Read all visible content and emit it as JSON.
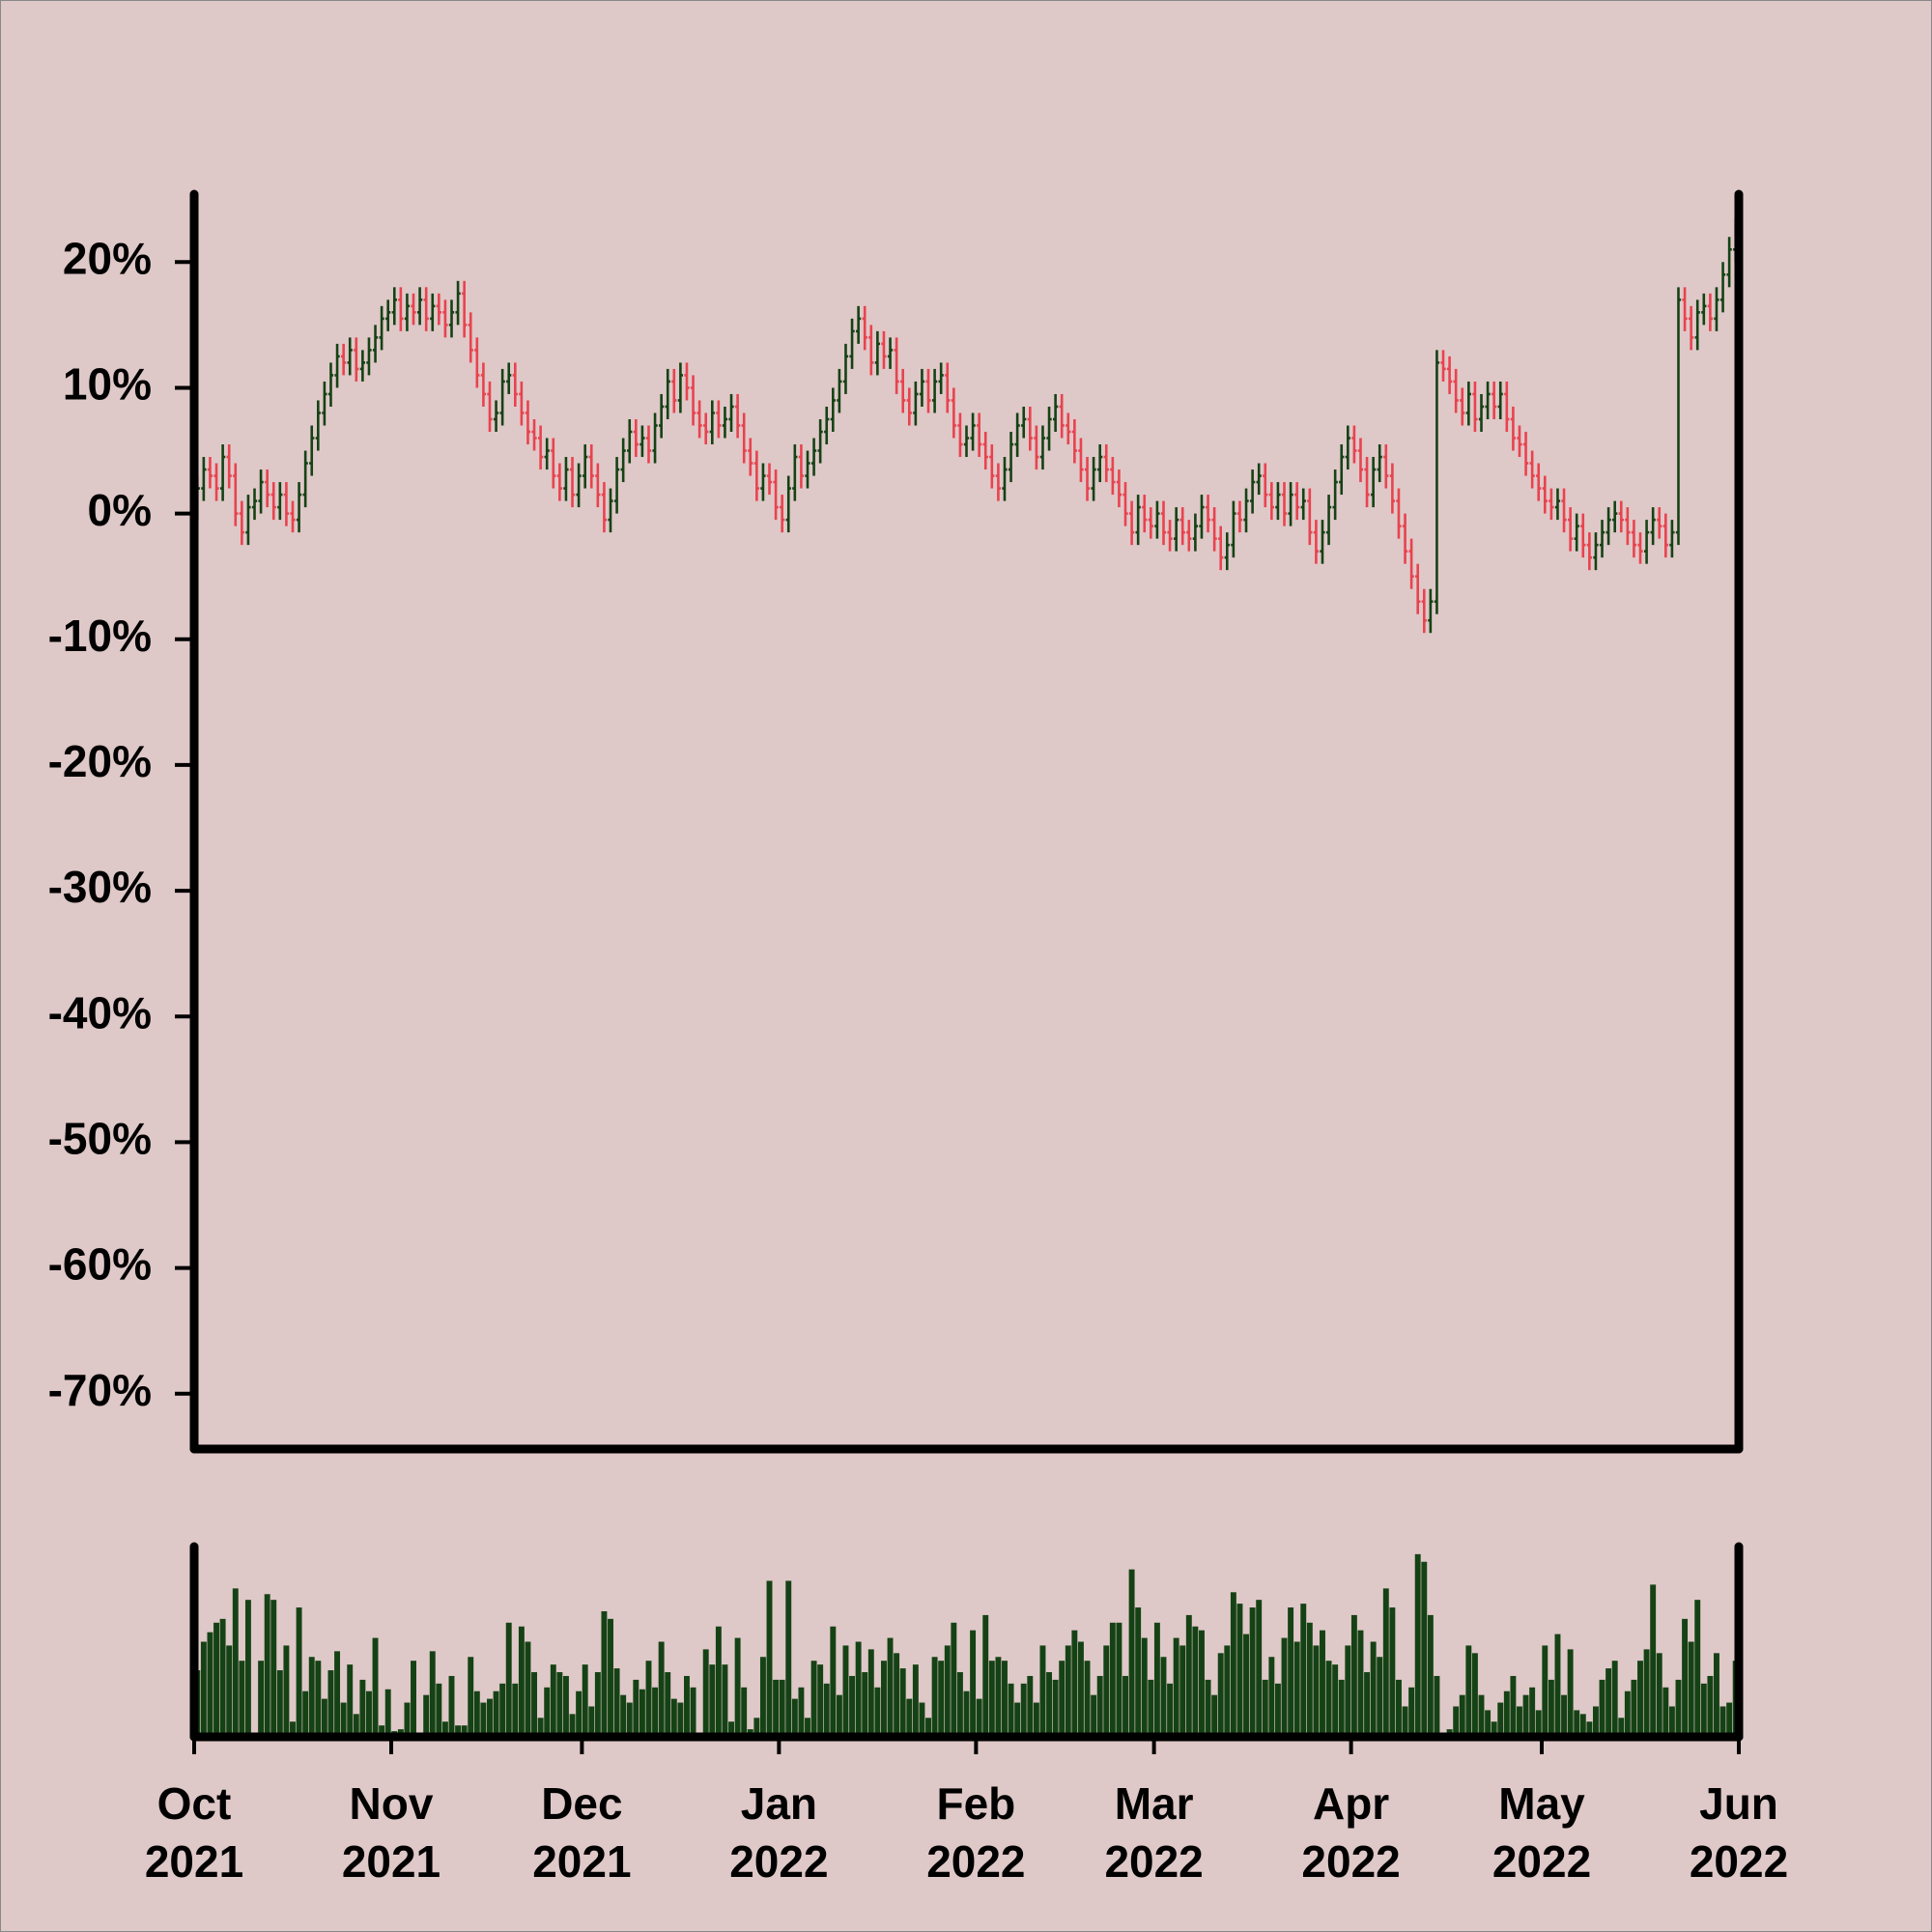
{
  "chart_data": {
    "type": "ohlc",
    "xlim": [
      0,
      243
    ],
    "xticks": [
      {
        "value": 0,
        "label": "Oct\n2021"
      },
      {
        "value": 31,
        "label": "Nov\n2021"
      },
      {
        "value": 61,
        "label": "Dec\n2021"
      },
      {
        "value": 92,
        "label": "Jan\n2022"
      },
      {
        "value": 123,
        "label": "Feb\n2022"
      },
      {
        "value": 151,
        "label": "Mar\n2022"
      },
      {
        "value": 182,
        "label": "Apr\n2022"
      },
      {
        "value": 212,
        "label": "May\n2022"
      },
      {
        "value": 243,
        "label": "Jun\n2022"
      }
    ],
    "ylim": [
      -74.4,
      25.4
    ],
    "yticks": [
      {
        "value": -70,
        "label": "-70%"
      },
      {
        "value": -60,
        "label": "-60%"
      },
      {
        "value": -50,
        "label": "-50%"
      },
      {
        "value": -40,
        "label": "-40%"
      },
      {
        "value": -30,
        "label": "-30%"
      },
      {
        "value": -20,
        "label": "-20%"
      },
      {
        "value": -10,
        "label": "-10%"
      },
      {
        "value": 0,
        "label": "0%"
      },
      {
        "value": 10,
        "label": "10%"
      },
      {
        "value": 20,
        "label": "20%"
      }
    ],
    "up_color": "#154215",
    "down_color": "#e8434f",
    "volume_color": "#154215",
    "open": [
      0.5,
      2,
      3.5,
      3,
      2,
      4.5,
      3,
      0,
      -1.5,
      0.5,
      1,
      2.5,
      1.5,
      0.5,
      1.5,
      0,
      -0.5,
      1.5,
      4,
      6,
      8,
      9.5,
      11,
      12.5,
      12,
      13,
      11.5,
      12,
      13,
      14,
      15.5,
      16,
      17,
      15.5,
      16.5,
      16,
      17,
      15.5,
      16.5,
      16,
      15,
      16,
      17.5,
      15,
      13,
      11,
      9.5,
      7.5,
      8,
      10.5,
      11,
      9.5,
      8,
      6.5,
      6,
      4.5,
      5,
      3,
      2,
      3.5,
      1.5,
      3,
      4.5,
      3,
      1.5,
      -0.5,
      1,
      3.5,
      5,
      6.5,
      5.5,
      6,
      5,
      7,
      8.5,
      10.5,
      9,
      11,
      10,
      8,
      7,
      6.5,
      8,
      7,
      7.5,
      8.5,
      7,
      5,
      4,
      2,
      3,
      2.5,
      0.5,
      -0.5,
      2,
      4.5,
      3,
      4,
      5,
      6.5,
      7.5,
      9,
      10.5,
      12.5,
      14.5,
      15.5,
      14,
      12,
      13.5,
      12.5,
      13,
      10.5,
      9,
      8,
      9.5,
      10.5,
      9,
      10.5,
      11,
      9,
      7,
      5.5,
      6,
      7,
      5.5,
      4.5,
      3,
      2,
      3.5,
      5.5,
      7,
      7.5,
      6,
      4.5,
      6,
      7.5,
      8.5,
      7,
      6.5,
      5,
      3.5,
      2,
      3.5,
      4.5,
      3.5,
      2.5,
      1.5,
      0,
      -1.5,
      0.5,
      -0.5,
      -1,
      0,
      -1.5,
      -2,
      -0.5,
      -1.5,
      -2,
      -1,
      0.5,
      -0.5,
      -2,
      -3.5,
      -2.5,
      0,
      -0.5,
      1,
      2.5,
      3,
      1.5,
      0.5,
      1.5,
      0,
      1.5,
      0.5,
      1,
      -1.5,
      -3,
      -1.5,
      0.5,
      2.5,
      4.5,
      6,
      5,
      3.5,
      1.5,
      3.5,
      4.5,
      3,
      1,
      -1,
      -3,
      -5,
      -7,
      -8.5,
      -7,
      12,
      11.5,
      10.5,
      9,
      8,
      9.5,
      7.5,
      8.5,
      9.5,
      8.5,
      9.5,
      7.5,
      6,
      5.5,
      4,
      3,
      2,
      1,
      0.5,
      1,
      -0.5,
      -2,
      -1,
      -2.5,
      -3.5,
      -2.5,
      -1.5,
      -0.5,
      0,
      -0.5,
      -1.5,
      -2.5,
      -3,
      -1.5,
      -0.5,
      -1,
      -2.5,
      -1.5,
      17,
      15.5,
      14,
      16,
      16.5,
      15.5,
      17,
      19,
      21
    ],
    "high": [
      3,
      4.5,
      4.5,
      4,
      5.5,
      5.5,
      4,
      1,
      1.5,
      2,
      3.5,
      3.5,
      2.5,
      2.5,
      2.5,
      1,
      2.5,
      5,
      7,
      9,
      10.5,
      12,
      13.5,
      13.5,
      14,
      14,
      13,
      14,
      15,
      16.5,
      17,
      18,
      18,
      17.5,
      17.5,
      18,
      18,
      17.5,
      17.5,
      17,
      17,
      18.5,
      18.5,
      16,
      14,
      12,
      10.5,
      9,
      11.5,
      12,
      12,
      10.5,
      9,
      7.5,
      7,
      6,
      6,
      4,
      4.5,
      4.5,
      4,
      5.5,
      5.5,
      4,
      2.5,
      2,
      4.5,
      6,
      7.5,
      7.5,
      7,
      7,
      8,
      9.5,
      11.5,
      11.5,
      12,
      12,
      11,
      9,
      8,
      9,
      9,
      8.5,
      9.5,
      9.5,
      8,
      6,
      5,
      4,
      4,
      3.5,
      1.5,
      3,
      5.5,
      5.5,
      5,
      6,
      7.5,
      8.5,
      10,
      11.5,
      13.5,
      15.5,
      16.5,
      16.5,
      15,
      14.5,
      14.5,
      14,
      14,
      11.5,
      10,
      10.5,
      11.5,
      11.5,
      11.5,
      12,
      12,
      10,
      8,
      7,
      8,
      8,
      6.5,
      5.5,
      4,
      4.5,
      6.5,
      8,
      8.5,
      8.5,
      7,
      7,
      8.5,
      9.5,
      9.5,
      8,
      7.5,
      6,
      4.5,
      4.5,
      5.5,
      5.5,
      4.5,
      3.5,
      2.5,
      1,
      1.5,
      1.5,
      0.5,
      1,
      1,
      -0.5,
      0.5,
      0.5,
      -0.5,
      0,
      1.5,
      1.5,
      0.5,
      -1,
      -1.5,
      1,
      1,
      2,
      3.5,
      4,
      4,
      2.5,
      2.5,
      2.5,
      2.5,
      2.5,
      2,
      2,
      -0.5,
      -0.5,
      1.5,
      3.5,
      5.5,
      7,
      7,
      6,
      4.5,
      4.5,
      5.5,
      5.5,
      4,
      2,
      0,
      -2,
      -4,
      -6,
      -6,
      13,
      13,
      12.5,
      11.5,
      10,
      10.5,
      10.5,
      9.5,
      10.5,
      10.5,
      10.5,
      10.5,
      8.5,
      7,
      6.5,
      5,
      4,
      3,
      2,
      2,
      2,
      0.5,
      0,
      0,
      -1.5,
      -1.5,
      -0.5,
      0.5,
      1,
      1,
      0.5,
      -0.5,
      -1.5,
      -0.5,
      0.5,
      0.5,
      0,
      -0.5,
      18,
      18,
      16.5,
      17,
      17.5,
      17.5,
      18,
      20,
      22,
      23.5
    ],
    "low": [
      -0.5,
      1,
      2,
      1,
      1,
      2,
      -1,
      -2.5,
      -2.5,
      -0.5,
      0,
      0.5,
      -0.5,
      -0.5,
      -1,
      -1.5,
      -1.5,
      0.5,
      3,
      5,
      7,
      8.5,
      10,
      11,
      11,
      10.5,
      10.5,
      11,
      12,
      13,
      14.5,
      15,
      14.5,
      14.5,
      15,
      15,
      14.5,
      14.5,
      15,
      14,
      14,
      15,
      14,
      12,
      10,
      8.5,
      6.5,
      6.5,
      7,
      9.5,
      8.5,
      7,
      5.5,
      5,
      3.5,
      3.5,
      2,
      1,
      1,
      0.5,
      0.5,
      2,
      2,
      0.5,
      -1.5,
      -1.5,
      0,
      2.5,
      4,
      4.5,
      4.5,
      4,
      4,
      6,
      7.5,
      8,
      8,
      9,
      7,
      6,
      5.5,
      5.5,
      6,
      6,
      6.5,
      6,
      4,
      3,
      1,
      1,
      1.5,
      -0.5,
      -1.5,
      -1.5,
      1,
      2,
      2,
      3,
      4,
      5.5,
      6.5,
      8,
      9.5,
      11.5,
      13.5,
      13,
      11,
      11,
      11.5,
      11.5,
      9.5,
      8,
      7,
      7,
      8.5,
      8,
      8,
      9.5,
      8,
      6,
      4.5,
      4.5,
      5,
      4.5,
      3.5,
      2,
      1,
      1,
      2.5,
      4.5,
      6,
      5,
      3.5,
      3.5,
      5,
      6.5,
      6,
      5.5,
      4,
      2.5,
      1,
      1,
      2.5,
      2.5,
      1.5,
      0.5,
      -1,
      -2.5,
      -2.5,
      -1.5,
      -2,
      -2,
      -2.5,
      -3,
      -3,
      -2.5,
      -3,
      -3,
      -2,
      -1.5,
      -3,
      -4.5,
      -4.5,
      -3.5,
      -1.5,
      -1.5,
      0,
      1.5,
      0.5,
      -0.5,
      -0.5,
      -1,
      -1,
      -0.5,
      -0.5,
      -2.5,
      -4,
      -4,
      -2.5,
      -0.5,
      1.5,
      3.5,
      4,
      2.5,
      0.5,
      0.5,
      2.5,
      2,
      0,
      -2,
      -4,
      -6,
      -8,
      -9.5,
      -9.5,
      -8,
      10.5,
      9.5,
      8,
      7,
      7,
      6.5,
      6.5,
      7.5,
      7.5,
      7.5,
      6.5,
      5,
      4.5,
      3,
      2,
      1,
      0,
      -0.5,
      -0.5,
      -1.5,
      -3,
      -3,
      -3.5,
      -4.5,
      -4.5,
      -3.5,
      -2.5,
      -1.5,
      -1.5,
      -2.5,
      -3.5,
      -4,
      -4,
      -2.5,
      -2,
      -3.5,
      -3.5,
      -2.5,
      14.5,
      13,
      13,
      15,
      14.5,
      14.5,
      16,
      18,
      20
    ],
    "close": [
      2,
      3.5,
      3,
      2,
      4.5,
      3,
      0,
      -1.5,
      0.5,
      1,
      2.5,
      1.5,
      0.5,
      1.5,
      0,
      -0.5,
      1.5,
      4,
      6,
      8,
      9.5,
      11,
      12.5,
      12,
      13,
      11.5,
      12,
      13,
      14,
      15.5,
      16,
      17,
      15.5,
      16.5,
      16,
      17,
      15.5,
      16.5,
      16,
      15,
      16,
      17.5,
      15,
      13,
      11,
      9.5,
      7.5,
      8,
      10.5,
      11,
      9.5,
      8,
      6.5,
      6,
      4.5,
      5,
      3,
      2,
      3.5,
      1.5,
      3,
      4.5,
      3,
      1.5,
      -0.5,
      1,
      3.5,
      5,
      6.5,
      5.5,
      6,
      5,
      7,
      8.5,
      10.5,
      9,
      11,
      10,
      8,
      7,
      6.5,
      8,
      7,
      7.5,
      8.5,
      7,
      5,
      4,
      2,
      3,
      2.5,
      0.5,
      -0.5,
      2,
      4.5,
      3,
      4,
      5,
      6.5,
      7.5,
      9,
      10.5,
      12.5,
      14.5,
      15.5,
      14,
      12,
      13.5,
      12.5,
      13,
      10.5,
      9,
      8,
      9.5,
      10.5,
      9,
      10.5,
      11,
      9,
      7,
      5.5,
      6,
      7,
      5.5,
      4.5,
      3,
      2,
      3.5,
      5.5,
      7,
      7.5,
      6,
      4.5,
      6,
      7.5,
      8.5,
      7,
      6.5,
      5,
      3.5,
      2,
      3.5,
      4.5,
      3.5,
      2.5,
      1.5,
      0,
      -1.5,
      0.5,
      -0.5,
      -1,
      0,
      -1.5,
      -2,
      -0.5,
      -1.5,
      -2,
      -1,
      0.5,
      -0.5,
      -2,
      -3.5,
      -2.5,
      0,
      -0.5,
      1,
      2.5,
      3,
      1.5,
      0.5,
      1.5,
      0,
      1.5,
      0.5,
      1,
      -1.5,
      -3,
      -1.5,
      0.5,
      2.5,
      4.5,
      6,
      5,
      3.5,
      1.5,
      3.5,
      4.5,
      3,
      1,
      -1,
      -3,
      -5,
      -7,
      -8.5,
      -7,
      12,
      11.5,
      10.5,
      9,
      8,
      9.5,
      7.5,
      8.5,
      9.5,
      8.5,
      9.5,
      7.5,
      6,
      5.5,
      4,
      3,
      2,
      1,
      0.5,
      1,
      -0.5,
      -2,
      -1,
      -2.5,
      -3.5,
      -2.5,
      -1.5,
      -0.5,
      0,
      -0.5,
      -1.5,
      -2.5,
      -3,
      -1.5,
      -0.5,
      -1,
      -2.5,
      -1.5,
      17,
      15.5,
      14,
      16,
      16.5,
      15.5,
      17,
      19,
      21,
      22.5
    ],
    "volume_ylim": [
      0,
      100
    ],
    "volume": [
      35,
      50,
      55,
      60,
      62,
      48,
      78,
      40,
      72,
      2,
      40,
      75,
      72,
      35,
      48,
      8,
      68,
      24,
      42,
      40,
      20,
      35,
      45,
      18,
      38,
      12,
      30,
      24,
      52,
      6,
      25,
      3,
      4,
      18,
      40,
      2,
      22,
      45,
      28,
      8,
      32,
      6,
      6,
      42,
      24,
      18,
      20,
      24,
      28,
      60,
      28,
      58,
      50,
      34,
      10,
      26,
      38,
      34,
      32,
      12,
      24,
      38,
      16,
      34,
      66,
      62,
      36,
      22,
      18,
      30,
      25,
      40,
      26,
      50,
      34,
      20,
      18,
      32,
      26,
      2,
      46,
      38,
      58,
      38,
      8,
      52,
      26,
      4,
      10,
      42,
      82,
      30,
      30,
      82,
      20,
      26,
      10,
      40,
      38,
      28,
      58,
      22,
      48,
      32,
      50,
      34,
      46,
      26,
      40,
      52,
      44,
      36,
      20,
      38,
      18,
      10,
      42,
      40,
      48,
      60,
      34,
      24,
      56,
      20,
      64,
      40,
      42,
      40,
      28,
      18,
      28,
      32,
      18,
      48,
      34,
      30,
      40,
      48,
      56,
      50,
      40,
      22,
      32,
      48,
      60,
      60,
      32,
      88,
      68,
      52,
      30,
      60,
      42,
      28,
      52,
      48,
      64,
      58,
      56,
      30,
      22,
      44,
      48,
      76,
      70,
      54,
      68,
      72,
      30,
      42,
      28,
      52,
      68,
      50,
      70,
      60,
      48,
      56,
      40,
      38,
      30,
      48,
      64,
      56,
      34,
      50,
      42,
      78,
      68,
      30,
      16,
      26,
      96,
      92,
      64,
      32,
      2,
      4,
      16,
      22,
      48,
      44,
      22,
      14,
      8,
      18,
      24,
      32,
      16,
      22,
      26,
      14,
      48,
      30,
      54,
      22,
      46,
      14,
      12,
      8,
      16,
      30,
      36,
      40,
      10,
      24,
      30,
      40,
      46,
      80,
      44,
      26,
      16,
      30,
      62,
      50,
      72,
      28,
      32,
      44,
      16,
      18,
      40
    ]
  }
}
